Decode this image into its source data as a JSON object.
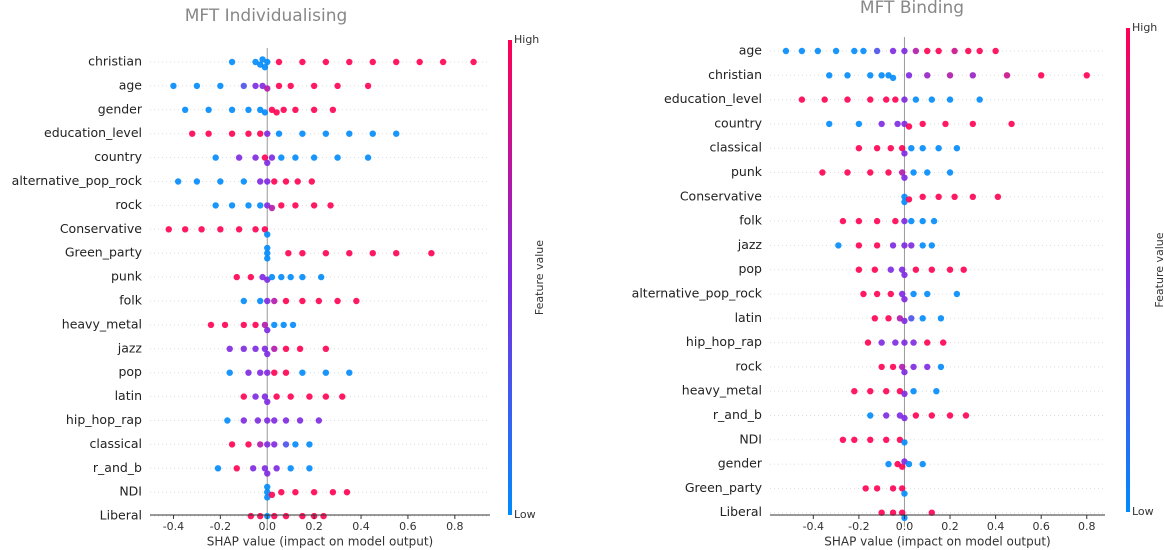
{
  "chart_data": [
    {
      "type": "beeswarm",
      "title": "MFT Individualising",
      "x_label": "SHAP value (impact on model output)",
      "colorbar_label": "Feature value",
      "colorbar_high": "High",
      "colorbar_low": "Low",
      "colors": {
        "low": "#008bfb",
        "high": "#ff0052"
      },
      "xlim": [
        -0.5,
        0.95
      ],
      "xticks": [
        -0.4,
        -0.2,
        {
          "value": 0,
          "label": "0.0"
        },
        0.2,
        0.4,
        0.6,
        0.8
      ],
      "series": [
        {
          "name": "christian",
          "values": [
            -0.15,
            -0.05,
            -0.03,
            -0.02,
            -0.01,
            0.0,
            0.05,
            0.15,
            0.25,
            0.35,
            0.45,
            0.55,
            0.65,
            0.75,
            0.88
          ],
          "feature_values": [
            0,
            0,
            0,
            0,
            0,
            0,
            1,
            1,
            1,
            1,
            1,
            1,
            1,
            1,
            1
          ]
        },
        {
          "name": "age",
          "values": [
            -0.4,
            -0.3,
            -0.2,
            -0.1,
            -0.05,
            -0.02,
            0.0,
            0.05,
            0.1,
            0.2,
            0.3,
            0.43
          ],
          "feature_values": [
            0,
            0,
            0,
            0.3,
            0.5,
            0.5,
            0.7,
            1,
            1,
            1,
            1,
            1
          ]
        },
        {
          "name": "gender",
          "values": [
            -0.35,
            -0.25,
            -0.15,
            -0.08,
            -0.03,
            -0.01,
            0.02,
            0.04,
            0.07,
            0.12,
            0.2,
            0.28
          ],
          "feature_values": [
            0,
            0,
            0,
            0,
            0,
            0,
            1,
            1,
            1,
            1,
            1,
            1
          ]
        },
        {
          "name": "education_level",
          "values": [
            -0.32,
            -0.25,
            -0.15,
            -0.08,
            -0.03,
            0.0,
            0.05,
            0.15,
            0.25,
            0.35,
            0.45,
            0.55
          ],
          "feature_values": [
            1,
            1,
            1,
            1,
            1,
            0.5,
            0,
            0,
            0,
            0,
            0,
            0
          ]
        },
        {
          "name": "country",
          "values": [
            -0.22,
            -0.12,
            -0.05,
            -0.01,
            0.0,
            0.02,
            0.06,
            0.12,
            0.2,
            0.3,
            0.43
          ],
          "feature_values": [
            0,
            0.5,
            0.5,
            1,
            0.5,
            0.5,
            0,
            0,
            0,
            0,
            0
          ]
        },
        {
          "name": "alternative_pop_rock",
          "values": [
            -0.38,
            -0.3,
            -0.2,
            -0.1,
            -0.03,
            0.0,
            0.03,
            0.08,
            0.13,
            0.19
          ],
          "feature_values": [
            0,
            0,
            0,
            0,
            0.5,
            0.5,
            1,
            1,
            1,
            1
          ]
        },
        {
          "name": "rock",
          "values": [
            -0.22,
            -0.15,
            -0.08,
            -0.03,
            0.0,
            0.02,
            0.06,
            0.12,
            0.2,
            0.27
          ],
          "feature_values": [
            0,
            0,
            0,
            0,
            0.5,
            0.7,
            1,
            1,
            1,
            1
          ]
        },
        {
          "name": "Conservative",
          "values": [
            -0.42,
            -0.35,
            -0.28,
            -0.2,
            -0.12,
            -0.05,
            -0.01,
            0.0
          ],
          "feature_values": [
            1,
            1,
            1,
            1,
            1,
            1,
            1,
            0
          ]
        },
        {
          "name": "Green_party",
          "values": [
            0.0,
            0.0,
            0.0,
            0.09,
            0.15,
            0.25,
            0.35,
            0.45,
            0.55,
            0.7
          ],
          "feature_values": [
            0,
            0,
            0,
            1,
            1,
            1,
            1,
            1,
            1,
            1
          ]
        },
        {
          "name": "punk",
          "values": [
            -0.13,
            -0.07,
            -0.02,
            0.0,
            0.02,
            0.06,
            0.1,
            0.15,
            0.23
          ],
          "feature_values": [
            1,
            1,
            0.5,
            0.5,
            0,
            0,
            0,
            0,
            0
          ]
        },
        {
          "name": "folk",
          "values": [
            -0.1,
            -0.03,
            0.0,
            0.03,
            0.08,
            0.15,
            0.22,
            0.3,
            0.38
          ],
          "feature_values": [
            0,
            0,
            0.5,
            0.7,
            1,
            1,
            1,
            1,
            1
          ]
        },
        {
          "name": "heavy_metal",
          "values": [
            -0.24,
            -0.18,
            -0.1,
            -0.05,
            -0.01,
            0.0,
            0.03,
            0.07,
            0.11
          ],
          "feature_values": [
            1,
            1,
            1,
            1,
            0.7,
            0.5,
            0,
            0,
            0
          ]
        },
        {
          "name": "jazz",
          "values": [
            -0.16,
            -0.1,
            -0.05,
            -0.01,
            0.0,
            0.03,
            0.08,
            0.14,
            0.25
          ],
          "feature_values": [
            0.5,
            0.5,
            0.5,
            0.5,
            0.5,
            0.7,
            1,
            1,
            1
          ]
        },
        {
          "name": "pop",
          "values": [
            -0.16,
            -0.08,
            -0.03,
            0.0,
            0.03,
            0.08,
            0.15,
            0.25,
            0.35
          ],
          "feature_values": [
            0,
            0.5,
            0.5,
            0.5,
            1,
            1,
            0,
            0,
            0
          ]
        },
        {
          "name": "latin",
          "values": [
            -0.1,
            -0.05,
            -0.01,
            0.0,
            0.04,
            0.1,
            0.18,
            0.25,
            0.32
          ],
          "feature_values": [
            1,
            0.5,
            0.5,
            0.5,
            1,
            1,
            1,
            1,
            1
          ]
        },
        {
          "name": "hip_hop_rap",
          "values": [
            -0.17,
            -0.1,
            -0.04,
            0.0,
            0.03,
            0.08,
            0.14,
            0.22
          ],
          "feature_values": [
            0,
            0.5,
            0.5,
            0.5,
            0.5,
            0.5,
            0.5,
            0.5
          ]
        },
        {
          "name": "classical",
          "values": [
            -0.15,
            -0.08,
            -0.03,
            0.0,
            0.03,
            0.08,
            0.12,
            0.18
          ],
          "feature_values": [
            1,
            1,
            0.7,
            0.5,
            0.5,
            0.3,
            0,
            0
          ]
        },
        {
          "name": "r_and_b",
          "values": [
            -0.21,
            -0.13,
            -0.06,
            -0.01,
            0.0,
            0.04,
            0.1,
            0.18
          ],
          "feature_values": [
            0,
            1,
            0.5,
            0.5,
            0.5,
            0.5,
            0,
            0
          ]
        },
        {
          "name": "NDI",
          "values": [
            0.0,
            0.0,
            0.0,
            0.02,
            0.06,
            0.12,
            0.2,
            0.28,
            0.34
          ],
          "feature_values": [
            0,
            0,
            0,
            1,
            1,
            1,
            1,
            1,
            1
          ]
        },
        {
          "name": "Liberal",
          "values": [
            -0.07,
            -0.03,
            0.0,
            0.03,
            0.08,
            0.15,
            0.2,
            0.24
          ],
          "feature_values": [
            1,
            1,
            0,
            1,
            1,
            1,
            1,
            1
          ]
        }
      ]
    },
    {
      "type": "beeswarm",
      "title": "MFT Binding",
      "x_label": "SHAP value (impact on model output)",
      "colorbar_label": "Feature value",
      "colorbar_high": "High",
      "colorbar_low": "Low",
      "colors": {
        "low": "#008bfb",
        "high": "#ff0052"
      },
      "xlim": [
        -0.59,
        0.88
      ],
      "xticks": [
        -0.4,
        -0.2,
        {
          "value": 0,
          "label": "0.0"
        },
        0.2,
        0.4,
        0.6,
        0.8
      ],
      "series": [
        {
          "name": "age",
          "values": [
            -0.52,
            -0.45,
            -0.38,
            -0.3,
            -0.22,
            -0.18,
            -0.12,
            -0.05,
            0.0,
            0.05,
            0.1,
            0.15,
            0.22,
            0.28,
            0.33,
            0.4
          ],
          "feature_values": [
            0,
            0,
            0,
            0,
            0,
            0,
            0.3,
            0.5,
            0.5,
            0.7,
            1,
            1,
            0.8,
            1,
            1,
            1
          ]
        },
        {
          "name": "christian",
          "values": [
            -0.33,
            -0.25,
            -0.15,
            -0.1,
            -0.07,
            -0.05,
            0.02,
            0.1,
            0.2,
            0.3,
            0.45,
            0.6,
            0.8
          ],
          "feature_values": [
            0,
            0,
            0,
            0,
            0,
            0,
            0.5,
            0.6,
            0.7,
            0.6,
            0.8,
            1,
            1
          ]
        },
        {
          "name": "education_level",
          "values": [
            -0.45,
            -0.35,
            -0.25,
            -0.15,
            -0.08,
            -0.04,
            0.0,
            0.05,
            0.12,
            0.2,
            0.33
          ],
          "feature_values": [
            1,
            1,
            1,
            1,
            1,
            1,
            0.5,
            0,
            0,
            0,
            0
          ]
        },
        {
          "name": "country",
          "values": [
            -0.33,
            -0.2,
            -0.1,
            -0.03,
            0.0,
            0.02,
            0.08,
            0.18,
            0.3,
            0.47
          ],
          "feature_values": [
            0,
            0,
            0.5,
            0.5,
            0.5,
            1,
            1,
            1,
            1,
            1
          ]
        },
        {
          "name": "classical",
          "values": [
            -0.2,
            -0.12,
            -0.06,
            -0.01,
            0.0,
            0.03,
            0.08,
            0.15,
            0.23
          ],
          "feature_values": [
            1,
            1,
            1,
            1,
            0.5,
            0,
            0,
            0,
            0
          ]
        },
        {
          "name": "punk",
          "values": [
            -0.36,
            -0.25,
            -0.15,
            -0.07,
            -0.01,
            0.0,
            0.04,
            0.1,
            0.2
          ],
          "feature_values": [
            1,
            1,
            1,
            1,
            0.7,
            0.5,
            0,
            0,
            0
          ]
        },
        {
          "name": "Conservative",
          "values": [
            0.0,
            0.0,
            0.02,
            0.08,
            0.15,
            0.22,
            0.3,
            0.41
          ],
          "feature_values": [
            0,
            0,
            1,
            1,
            1,
            1,
            1,
            1
          ]
        },
        {
          "name": "folk",
          "values": [
            -0.27,
            -0.2,
            -0.12,
            -0.04,
            0.0,
            0.03,
            0.08,
            0.13
          ],
          "feature_values": [
            1,
            1,
            1,
            1,
            0.5,
            0,
            0,
            0
          ]
        },
        {
          "name": "jazz",
          "values": [
            -0.29,
            -0.2,
            -0.12,
            -0.05,
            0.0,
            0.03,
            0.08,
            0.12
          ],
          "feature_values": [
            0,
            1,
            1,
            0.5,
            0.5,
            0.5,
            0,
            0
          ]
        },
        {
          "name": "pop",
          "values": [
            -0.2,
            -0.13,
            -0.06,
            -0.01,
            0.0,
            0.05,
            0.12,
            0.2,
            0.26
          ],
          "feature_values": [
            1,
            1,
            0.5,
            0.5,
            0.5,
            1,
            1,
            1,
            1
          ]
        },
        {
          "name": "alternative_pop_rock",
          "values": [
            -0.18,
            -0.12,
            -0.06,
            -0.01,
            0.0,
            0.04,
            0.1,
            0.23
          ],
          "feature_values": [
            1,
            1,
            1,
            0.5,
            0.5,
            0,
            0,
            0
          ]
        },
        {
          "name": "latin",
          "values": [
            -0.13,
            -0.07,
            -0.02,
            0.0,
            0.03,
            0.08,
            0.16
          ],
          "feature_values": [
            1,
            1,
            0.7,
            0.5,
            0.3,
            0,
            0
          ]
        },
        {
          "name": "hip_hop_rap",
          "values": [
            -0.16,
            -0.1,
            -0.04,
            0.0,
            0.04,
            0.1,
            0.17
          ],
          "feature_values": [
            1,
            0.5,
            0.5,
            0.5,
            0.5,
            1,
            1
          ]
        },
        {
          "name": "rock",
          "values": [
            -0.1,
            -0.05,
            -0.01,
            0.0,
            0.04,
            0.1,
            0.16
          ],
          "feature_values": [
            1,
            1,
            0.7,
            0.5,
            0.5,
            0.5,
            0
          ]
        },
        {
          "name": "heavy_metal",
          "values": [
            -0.22,
            -0.15,
            -0.08,
            -0.02,
            0.0,
            0.04,
            0.14
          ],
          "feature_values": [
            1,
            1,
            1,
            1,
            0.5,
            0,
            0
          ]
        },
        {
          "name": "r_and_b",
          "values": [
            -0.15,
            -0.08,
            -0.02,
            0.0,
            0.05,
            0.12,
            0.2,
            0.27
          ],
          "feature_values": [
            0,
            0.5,
            0.5,
            0.5,
            1,
            1,
            1,
            1
          ]
        },
        {
          "name": "NDI",
          "values": [
            -0.27,
            -0.22,
            -0.15,
            -0.08,
            -0.02,
            0.0
          ],
          "feature_values": [
            1,
            1,
            1,
            1,
            1,
            0
          ]
        },
        {
          "name": "gender",
          "values": [
            -0.07,
            -0.03,
            -0.01,
            0.0,
            0.02,
            0.08
          ],
          "feature_values": [
            0,
            1,
            1,
            0.5,
            0,
            0
          ]
        },
        {
          "name": "Green_party",
          "values": [
            -0.17,
            -0.12,
            -0.05,
            -0.01,
            0.0
          ],
          "feature_values": [
            1,
            1,
            1,
            1,
            0
          ]
        },
        {
          "name": "Liberal",
          "values": [
            -0.1,
            -0.05,
            -0.01,
            0.0,
            0.12
          ],
          "feature_values": [
            1,
            1,
            1,
            0,
            1
          ]
        }
      ]
    }
  ]
}
